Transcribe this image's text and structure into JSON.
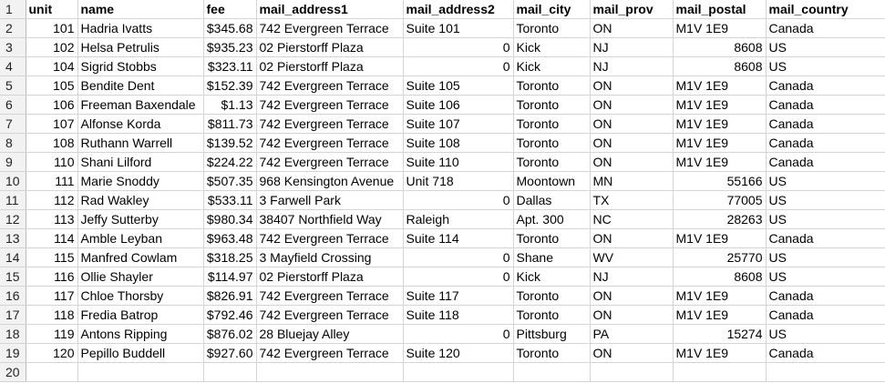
{
  "sheet": {
    "headers": [
      "unit",
      "name",
      "fee",
      "mail_address1",
      "mail_address2",
      "mail_city",
      "mail_prov",
      "mail_postal",
      "mail_country"
    ],
    "row_numbers": [
      "1",
      "2",
      "3",
      "4",
      "5",
      "6",
      "7",
      "8",
      "9",
      "10",
      "11",
      "12",
      "13",
      "14",
      "15",
      "16",
      "17",
      "18",
      "19",
      "20"
    ],
    "rows": [
      [
        "101",
        "Hadria Ivatts",
        "$345.68",
        "742 Evergreen Terrace",
        "Suite 101",
        "Toronto",
        "ON",
        "M1V 1E9",
        "Canada"
      ],
      [
        "102",
        "Helsa Petrulis",
        "$935.23",
        "02 Pierstorff Plaza",
        "0",
        "Kick",
        "NJ",
        "8608",
        "US"
      ],
      [
        "104",
        "Sigrid Stobbs",
        "$323.11",
        "02 Pierstorff Plaza",
        "0",
        "Kick",
        "NJ",
        "8608",
        "US"
      ],
      [
        "105",
        "Bendite Dent",
        "$152.39",
        "742 Evergreen Terrace",
        "Suite 105",
        "Toronto",
        "ON",
        "M1V 1E9",
        "Canada"
      ],
      [
        "106",
        "Freeman Baxendale",
        "$1.13",
        "742 Evergreen Terrace",
        "Suite 106",
        "Toronto",
        "ON",
        "M1V 1E9",
        "Canada"
      ],
      [
        "107",
        "Alfonse Korda",
        "$811.73",
        "742 Evergreen Terrace",
        "Suite 107",
        "Toronto",
        "ON",
        "M1V 1E9",
        "Canada"
      ],
      [
        "108",
        "Ruthann Warrell",
        "$139.52",
        "742 Evergreen Terrace",
        "Suite 108",
        "Toronto",
        "ON",
        "M1V 1E9",
        "Canada"
      ],
      [
        "110",
        "Shani Lilford",
        "$224.22",
        "742 Evergreen Terrace",
        "Suite 110",
        "Toronto",
        "ON",
        "M1V 1E9",
        "Canada"
      ],
      [
        "111",
        "Marie Snoddy",
        "$507.35",
        "968 Kensington Avenue",
        "Unit 718",
        "Moontown",
        "MN",
        "55166",
        "US"
      ],
      [
        "112",
        "Rad Wakley",
        "$533.11",
        "3 Farwell Park",
        "0",
        "Dallas",
        "TX",
        "77005",
        "US"
      ],
      [
        "113",
        "Jeffy Sutterby",
        "$980.34",
        "38407 Northfield Way",
        "Raleigh",
        "Apt. 300",
        "NC",
        "28263",
        "US"
      ],
      [
        "114",
        "Amble Leyban",
        "$963.48",
        "742 Evergreen Terrace",
        "Suite 114",
        "Toronto",
        "ON",
        "M1V 1E9",
        "Canada"
      ],
      [
        "115",
        "Manfred Cowlam",
        "$318.25",
        "3 Mayfield Crossing",
        "0",
        "Shane",
        "WV",
        "25770",
        "US"
      ],
      [
        "116",
        "Ollie Shayler",
        "$114.97",
        "02 Pierstorff Plaza",
        "0",
        "Kick",
        "NJ",
        "8608",
        "US"
      ],
      [
        "117",
        "Chloe Thorsby",
        "$826.91",
        "742 Evergreen Terrace",
        "Suite 117",
        "Toronto",
        "ON",
        "M1V 1E9",
        "Canada"
      ],
      [
        "118",
        "Fredia Batrop",
        "$792.46",
        "742 Evergreen Terrace",
        "Suite 118",
        "Toronto",
        "ON",
        "M1V 1E9",
        "Canada"
      ],
      [
        "119",
        "Antons Ripping",
        "$876.02",
        "28 Bluejay Alley",
        "0",
        "Pittsburg",
        "PA",
        "15274",
        "US"
      ],
      [
        "120",
        "Pepillo Buddell",
        "$927.60",
        "742 Evergreen Terrace",
        "Suite 120",
        "Toronto",
        "ON",
        "M1V 1E9",
        "Canada"
      ]
    ]
  }
}
